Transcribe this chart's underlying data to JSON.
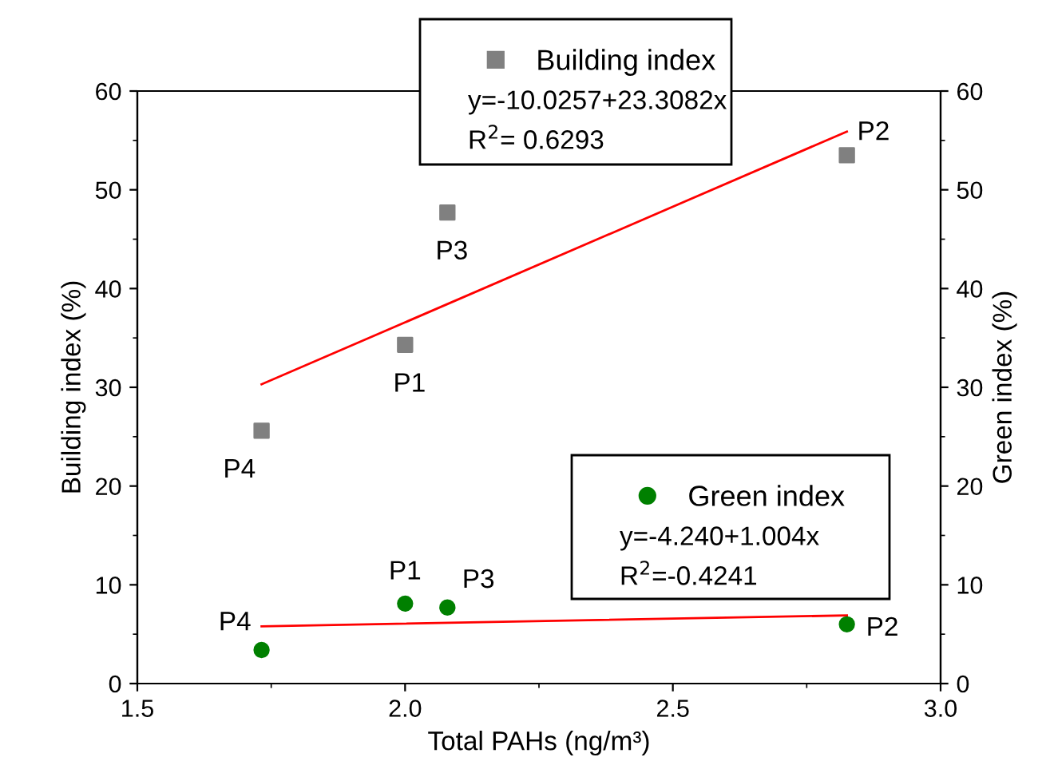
{
  "chart_data": {
    "type": "scatter",
    "xlabel": "Total PAHs (ng/m³)",
    "ylabel": "Building index (%)",
    "y2label": "Green index (%)",
    "xlim": [
      1.5,
      3.0
    ],
    "xticks": [
      1.5,
      {
        "value": 2,
        "label": "2.0"
      },
      2.5,
      {
        "value": 3,
        "label": "3.0"
      }
    ],
    "ylim": [
      0,
      60
    ],
    "yticks": [
      0,
      10,
      20,
      30,
      40,
      50,
      60
    ],
    "y2lim": [
      0,
      60
    ],
    "y2ticks": [
      0,
      10,
      20,
      30,
      40,
      50,
      60
    ],
    "series": [
      {
        "name": "Building index",
        "marker": "square",
        "color": "#808080",
        "x": [
          1.732,
          2.0,
          2.079,
          2.825
        ],
        "values": [
          25.6,
          34.3,
          47.7,
          53.5
        ]
      },
      {
        "type": "line",
        "marker": "none",
        "color": "#ff0000",
        "x": [
          1.732,
          2.825
        ],
        "values": [
          30.3,
          55.9
        ]
      },
      {
        "name": "Green index",
        "marker": "circle",
        "color": "#008000",
        "axis": "y2",
        "x": [
          1.732,
          2.0,
          2.079,
          2.825
        ],
        "values": [
          3.4,
          8.1,
          7.7,
          6.0
        ]
      },
      {
        "type": "line",
        "marker": "none",
        "color": "#ff0000",
        "axis": "y2",
        "x": [
          1.732,
          2.825
        ],
        "values": [
          5.8,
          6.9
        ]
      }
    ],
    "annotations": [
      "y=-10.0257+23.3082x",
      "R$^{2}$= 0.6293",
      "y=-4.240+1.004x",
      "R$^{2}$=-0.4241",
      {
        "text": "P4",
        "x": 1.732,
        "y": 25.6
      },
      {
        "text": "P1",
        "x": 2.0,
        "y": 34.3
      },
      {
        "text": "P3",
        "x": 2.079,
        "y": 47.7
      },
      {
        "text": "P2",
        "x": 2.825,
        "y": 53.5
      },
      {
        "text": "P4",
        "x": 1.732,
        "y": 3.4
      },
      {
        "text": "P1",
        "x": 2.0,
        "y": 8.1
      },
      {
        "text": "P3",
        "x": 2.079,
        "y": 7.7
      },
      {
        "text": "P2",
        "x": 2.825,
        "y": 6.0
      }
    ],
    "legend": "top",
    "grid": false
  }
}
